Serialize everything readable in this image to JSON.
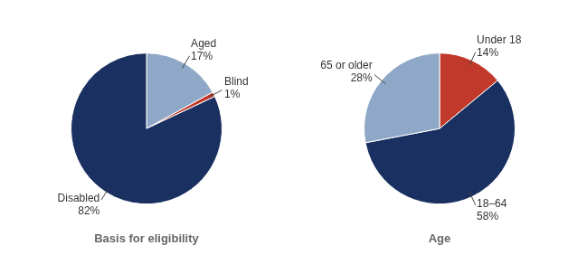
{
  "chart_data": [
    {
      "type": "pie",
      "title": "Basis for eligibility",
      "categories": [
        "Aged",
        "Blind",
        "Disabled"
      ],
      "values": [
        17,
        1,
        82
      ],
      "value_labels": [
        "17%",
        "1%",
        "82%"
      ],
      "colors": [
        "#8fa8c8",
        "#c0392b",
        "#1a3060"
      ],
      "data_labels": true
    },
    {
      "type": "pie",
      "title": "Age",
      "categories": [
        "Under 18",
        "18–64",
        "65 or older"
      ],
      "values": [
        14,
        58,
        28
      ],
      "value_labels": [
        "14%",
        "58%",
        "28%"
      ],
      "colors": [
        "#c0392b",
        "#1a3060",
        "#8fa8c8"
      ],
      "data_labels": true
    }
  ]
}
